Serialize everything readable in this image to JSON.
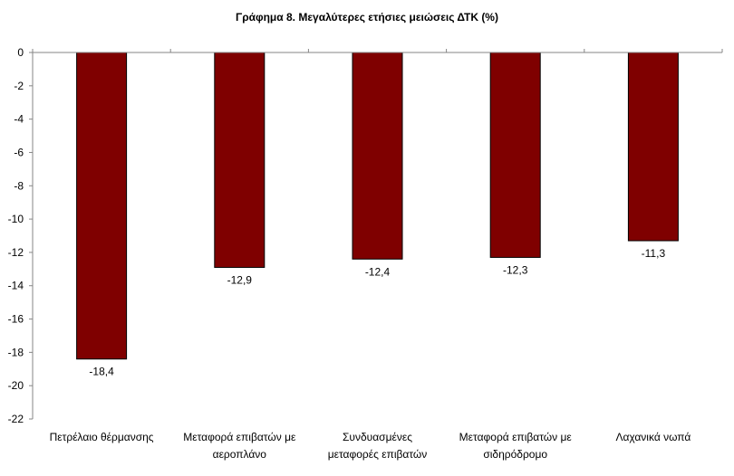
{
  "chart_data": {
    "type": "bar",
    "title": "Γράφημα 8. Μεγαλύτερες ετήσιες μειώσεις ΔΤΚ (%)",
    "xlabel": "",
    "ylabel": "",
    "categories": [
      [
        "Πετρέλαιο θέρμανσης"
      ],
      [
        "Μεταφορά επιβατών με",
        "αεροπλάνο"
      ],
      [
        "Συνδυασμένες",
        "μεταφορές επιβατών"
      ],
      [
        "Μεταφορά επιβατών με",
        "σιδηρόδρομο"
      ],
      [
        "Λαχανικά νωπά"
      ]
    ],
    "values": [
      -18.4,
      -12.9,
      -12.4,
      -12.3,
      -11.3
    ],
    "value_labels": [
      "-18,4",
      "-12,9",
      "-12,4",
      "-12,3",
      "-11,3"
    ],
    "ylim": [
      -22,
      0
    ],
    "yticks": [
      0,
      -2,
      -4,
      -6,
      -8,
      -10,
      -12,
      -14,
      -16,
      -18,
      -20,
      -22
    ],
    "ytick_labels": [
      "0",
      "-2",
      "-4",
      "-6",
      "-8",
      "-10",
      "-12",
      "-14",
      "-16",
      "-18",
      "-20",
      "-22"
    ],
    "grid": false,
    "legend": "none",
    "bar_color": "#7f0000",
    "bar_edge_color": "#000000"
  }
}
